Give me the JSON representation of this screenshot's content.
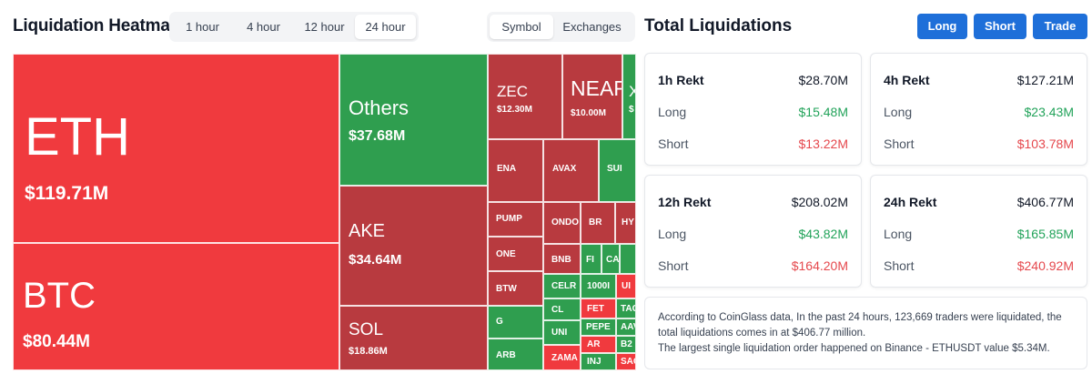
{
  "heatmap": {
    "title": "Liquidation Heatmap",
    "time_options": [
      "1 hour",
      "4 hour",
      "12 hour",
      "24 hour"
    ],
    "time_selected": "24 hour",
    "view_options": [
      "Symbol",
      "Exchanges"
    ],
    "view_selected": "Symbol",
    "colors": {
      "short_red": "#f03a3e",
      "long_green": "#2f9e4f",
      "dark_red": "#b83a3f"
    },
    "tiles": [
      {
        "id": "eth",
        "symbol": "ETH",
        "amount": "$119.71M",
        "side": "short"
      },
      {
        "id": "btc",
        "symbol": "BTC",
        "amount": "$80.44M",
        "side": "short"
      },
      {
        "id": "others",
        "symbol": "Others",
        "amount": "$37.68M",
        "side": "long"
      },
      {
        "id": "ake",
        "symbol": "AKE",
        "amount": "$34.64M",
        "side": "short"
      },
      {
        "id": "sol",
        "symbol": "SOL",
        "amount": "$18.86M",
        "side": "short"
      },
      {
        "id": "zec",
        "symbol": "ZEC",
        "amount": "$12.30M",
        "side": "short"
      },
      {
        "id": "near",
        "symbol": "NEAR",
        "amount": "$10.00M",
        "side": "short"
      },
      {
        "id": "x",
        "symbol": "X",
        "amount": "$",
        "side": "long"
      },
      {
        "id": "ena",
        "symbol": "ENA",
        "amount": "",
        "side": "short"
      },
      {
        "id": "avax",
        "symbol": "AVAX",
        "amount": "",
        "side": "short"
      },
      {
        "id": "sui",
        "symbol": "SUI",
        "amount": "",
        "side": "long"
      },
      {
        "id": "pump",
        "symbol": "PUMP",
        "amount": "",
        "side": "short"
      },
      {
        "id": "one",
        "symbol": "ONE",
        "amount": "",
        "side": "short"
      },
      {
        "id": "btw",
        "symbol": "BTW",
        "amount": "",
        "side": "short"
      },
      {
        "id": "g",
        "symbol": "G",
        "amount": "",
        "side": "long"
      },
      {
        "id": "arb",
        "symbol": "ARB",
        "amount": "",
        "side": "long"
      },
      {
        "id": "ondo",
        "symbol": "ONDO",
        "amount": "",
        "side": "short"
      },
      {
        "id": "br",
        "symbol": "BR",
        "amount": "",
        "side": "short"
      },
      {
        "id": "hy",
        "symbol": "HY",
        "amount": "",
        "side": "short"
      },
      {
        "id": "bnb",
        "symbol": "BNB",
        "amount": "",
        "side": "short"
      },
      {
        "id": "fi",
        "symbol": "FI",
        "amount": "",
        "side": "long"
      },
      {
        "id": "ca",
        "symbol": "CA",
        "amount": "",
        "side": "long"
      },
      {
        "id": "sq1",
        "symbol": "",
        "amount": "",
        "side": "long"
      },
      {
        "id": "celr",
        "symbol": "CELR",
        "amount": "",
        "side": "long"
      },
      {
        "id": "k1000",
        "symbol": "1000I",
        "amount": "",
        "side": "long"
      },
      {
        "id": "ui",
        "symbol": "UI",
        "amount": "",
        "side": "short"
      },
      {
        "id": "cl",
        "symbol": "CL",
        "amount": "",
        "side": "long"
      },
      {
        "id": "fet",
        "symbol": "FET",
        "amount": "",
        "side": "short"
      },
      {
        "id": "tac",
        "symbol": "TAC",
        "amount": "",
        "side": "long"
      },
      {
        "id": "uni",
        "symbol": "UNI",
        "amount": "",
        "side": "long"
      },
      {
        "id": "pepe",
        "symbol": "PEPE",
        "amount": "",
        "side": "long"
      },
      {
        "id": "aav",
        "symbol": "AAV",
        "amount": "",
        "side": "long"
      },
      {
        "id": "ar",
        "symbol": "AR",
        "amount": "",
        "side": "short"
      },
      {
        "id": "b2",
        "symbol": "B2",
        "amount": "",
        "side": "long"
      },
      {
        "id": "zama",
        "symbol": "ZAMA",
        "amount": "",
        "side": "short"
      },
      {
        "id": "inj",
        "symbol": "INJ",
        "amount": "",
        "side": "long"
      },
      {
        "id": "sag",
        "symbol": "SAG",
        "amount": "",
        "side": "short"
      }
    ]
  },
  "panel": {
    "title": "Total Liquidations",
    "buttons": {
      "long": "Long",
      "short": "Short",
      "trade": "Trade"
    },
    "long_label": "Long",
    "short_label": "Short",
    "cards": [
      {
        "title": "1h Rekt",
        "total": "$28.70M",
        "long": "$15.48M",
        "short": "$13.22M"
      },
      {
        "title": "4h Rekt",
        "total": "$127.21M",
        "long": "$23.43M",
        "short": "$103.78M"
      },
      {
        "title": "12h Rekt",
        "total": "$208.02M",
        "long": "$43.82M",
        "short": "$164.20M"
      },
      {
        "title": "24h Rekt",
        "total": "$406.77M",
        "long": "$165.85M",
        "short": "$240.92M"
      }
    ],
    "note_lines": [
      "According to CoinGlass data, In the past 24 hours, 123,669 traders were liquidated, the total liquidations comes in at $406.77 million.",
      "The largest single liquidation order happened on Binance - ETHUSDT value $5.34M."
    ]
  }
}
